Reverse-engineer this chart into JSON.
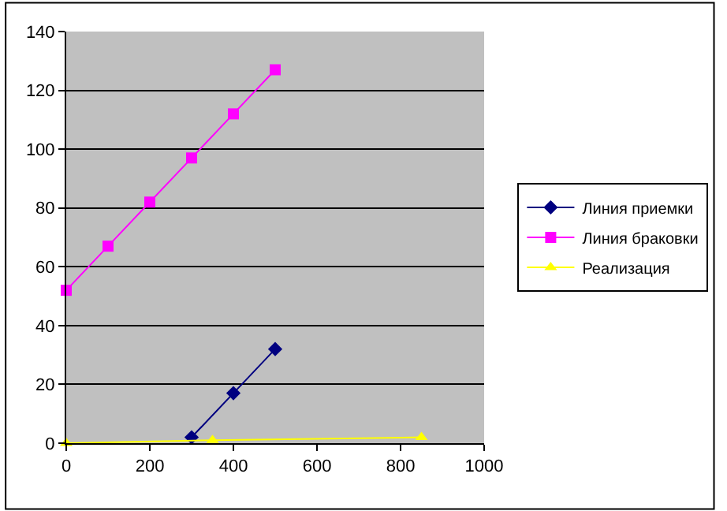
{
  "chart_data": {
    "type": "line",
    "series": [
      {
        "name": "Линия приемки",
        "color": "#000080",
        "marker": "diamond",
        "x": [
          300,
          400,
          500
        ],
        "values": [
          2,
          17,
          32
        ]
      },
      {
        "name": "Линия браковки",
        "color": "#ff00ff",
        "marker": "square",
        "x": [
          0,
          100,
          200,
          300,
          400,
          500
        ],
        "values": [
          52,
          67,
          82,
          97,
          112,
          127
        ]
      },
      {
        "name": "Реализация",
        "color": "#ffff00",
        "marker": "triangle",
        "x": [
          0,
          350,
          850
        ],
        "values": [
          0,
          1,
          2
        ]
      }
    ],
    "xlim": [
      0,
      1000
    ],
    "xticks": [
      0,
      200,
      400,
      600,
      800,
      1000
    ],
    "ylim": [
      0,
      140
    ],
    "yticks": [
      0,
      20,
      40,
      60,
      80,
      100,
      120,
      140
    ],
    "grid": "y",
    "legend": "right",
    "line_style": "solid"
  }
}
